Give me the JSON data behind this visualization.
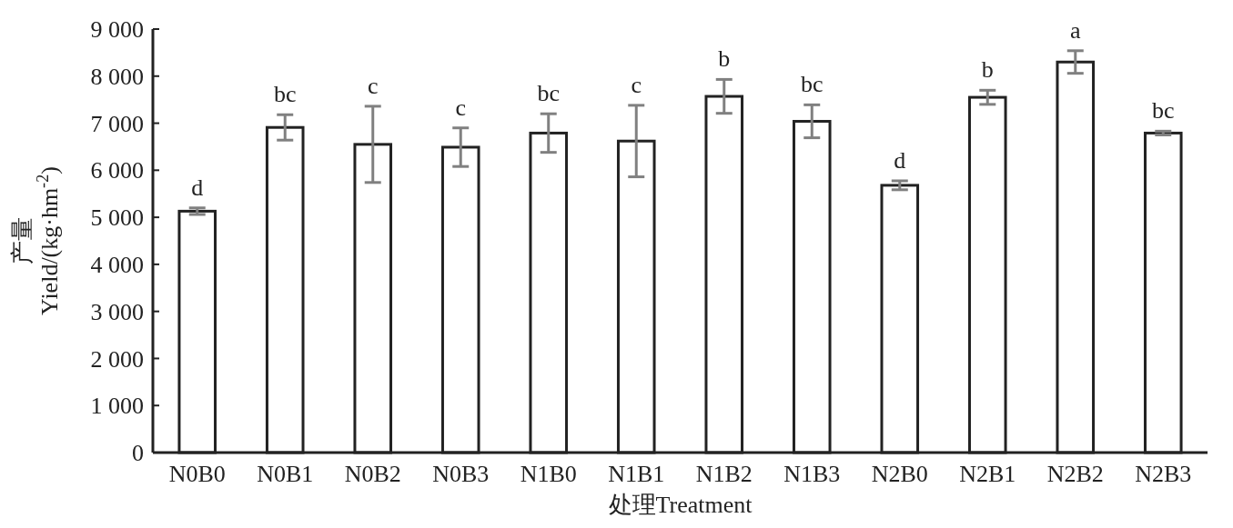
{
  "chart_data": {
    "type": "bar",
    "xlabel": "处理Treatment",
    "ylabel": "产量\nYield/(kg·hm$^{-2}$)",
    "categories": [
      "N0B0",
      "N0B1",
      "N0B2",
      "N0B3",
      "N1B0",
      "N1B1",
      "N1B2",
      "N1B3",
      "N2B0",
      "N2B1",
      "N2B2",
      "N2B3"
    ],
    "values": [
      5130,
      6910,
      6550,
      6490,
      6790,
      6620,
      7570,
      7040,
      5680,
      7550,
      8300,
      6790
    ],
    "errors": [
      70,
      270,
      810,
      410,
      410,
      760,
      360,
      350,
      95,
      150,
      240,
      40
    ],
    "color": "#ffffff",
    "ylim": [
      0,
      9000
    ],
    "yticks": [
      0,
      {
        "value": 1000,
        "label": "1 000"
      },
      {
        "value": 2000,
        "label": "2 000"
      },
      {
        "value": 3000,
        "label": "3 000"
      },
      {
        "value": 4000,
        "label": "4 000"
      },
      {
        "value": 5000,
        "label": "5 000"
      },
      {
        "value": 6000,
        "label": "6 000"
      },
      {
        "value": 7000,
        "label": "7 000"
      },
      {
        "value": 8000,
        "label": "8 000"
      },
      {
        "value": 9000,
        "label": "9 000"
      }
    ],
    "annotations": [
      {
        "text": "d",
        "x": "N0B0",
        "y": 5200
      },
      {
        "text": "bc",
        "x": "N0B1",
        "y": 7180
      },
      {
        "text": "c",
        "x": "N0B2",
        "y": 7360
      },
      {
        "text": "c",
        "x": "N0B3",
        "y": 6900
      },
      {
        "text": "bc",
        "x": "N1B0",
        "y": 7200
      },
      {
        "text": "c",
        "x": "N1B1",
        "y": 7380
      },
      {
        "text": "b",
        "x": "N1B2",
        "y": 7930
      },
      {
        "text": "bc",
        "x": "N1B3",
        "y": 7390
      },
      {
        "text": "d",
        "x": "N2B0",
        "y": 5775
      },
      {
        "text": "b",
        "x": "N2B1",
        "y": 7700
      },
      {
        "text": "a",
        "x": "N2B2",
        "y": 8540
      },
      {
        "text": "bc",
        "x": "N2B3",
        "y": 6830
      }
    ],
    "grid": false
  }
}
